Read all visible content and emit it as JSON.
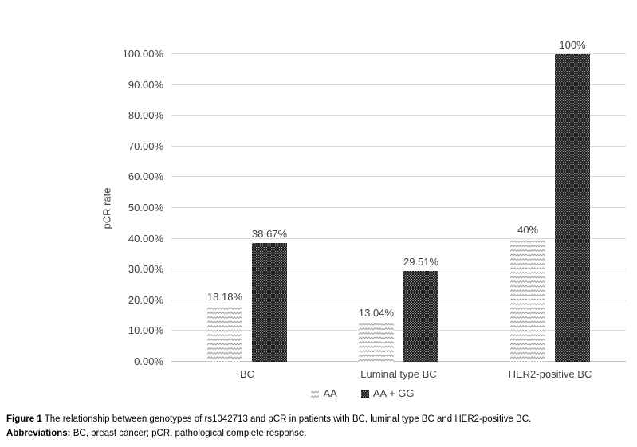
{
  "figure": {
    "caption_bold": "Figure 1",
    "caption_text": "The relationship between genotypes of rs1042713 and pCR in patients with BC, luminal type BC and HER2-positive BC.",
    "abbrev_bold": "Abbreviations:",
    "abbrev_text": "BC, breast cancer; pCR, pathological complete response."
  },
  "chart_data": {
    "type": "bar",
    "title": "",
    "xlabel": "",
    "ylabel": "pCR rate",
    "categories": [
      "BC",
      "Luminal type BC",
      "HER2-positive BC"
    ],
    "series": [
      {
        "name": "AA",
        "pattern": "zigzag",
        "values": [
          18.18,
          13.04,
          40
        ],
        "labels": [
          "18.18%",
          "13.04%",
          "40%"
        ]
      },
      {
        "name": "AA + GG",
        "pattern": "dark-dot",
        "values": [
          38.67,
          29.51,
          100
        ],
        "labels": [
          "38.67%",
          "29.51%",
          "100%"
        ]
      }
    ],
    "ylim": [
      0,
      100
    ],
    "yticks": [
      "0.00%",
      "10.00%",
      "20.00%",
      "30.00%",
      "40.00%",
      "50.00%",
      "60.00%",
      "70.00%",
      "80.00%",
      "90.00%",
      "100.00%"
    ],
    "grid": true,
    "legend_position": "bottom",
    "colors": {
      "grid": "#d9d9d9",
      "axis_line": "#bdbdbd",
      "text": "#404040",
      "dark_fill": "#141414",
      "zigzag_stroke": "#999999"
    }
  }
}
